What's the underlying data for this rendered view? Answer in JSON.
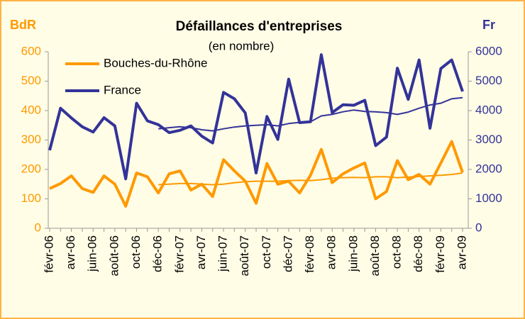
{
  "chart_data": {
    "type": "line",
    "title": "Défaillances d'entreprises",
    "subtitle": "(en nombre)",
    "y_axis_label": "BdR",
    "y2_axis_label": "Fr",
    "categories": [
      "févr-06",
      null,
      "avr-06",
      null,
      "juin-06",
      null,
      "août-06",
      null,
      "oct-06",
      null,
      "déc-06",
      null,
      "févr-07",
      null,
      "avr-07",
      null,
      "juin-07",
      null,
      "août-07",
      null,
      "oct-07",
      null,
      "déc-07",
      null,
      "févr-08",
      null,
      "avr-08",
      null,
      "juin-08",
      null,
      "août-08",
      null,
      "oct-08",
      null,
      "déc-08",
      null,
      "févr-09",
      null,
      "avr-09"
    ],
    "series": [
      {
        "name": "Bouches-du-Rhône",
        "color": "#ff9900",
        "values": [
          135,
          152,
          178,
          135,
          122,
          178,
          150,
          75,
          188,
          175,
          120,
          185,
          195,
          130,
          150,
          108,
          233,
          195,
          160,
          85,
          220,
          150,
          160,
          120,
          180,
          268,
          155,
          185,
          205,
          222,
          100,
          125,
          230,
          165,
          183,
          150,
          222,
          295,
          190
        ]
      },
      {
        "name": "France",
        "color": "#333399",
        "axis": "y2",
        "values": [
          2650,
          4080,
          3750,
          3450,
          3270,
          3760,
          3480,
          1680,
          4250,
          3650,
          3520,
          3250,
          3330,
          3480,
          3130,
          2900,
          4620,
          4400,
          3920,
          1880,
          3800,
          3020,
          5070,
          3590,
          3620,
          5900,
          3930,
          4200,
          4180,
          4350,
          2810,
          3100,
          5440,
          4380,
          5720,
          3400,
          5430,
          5720,
          4650
        ]
      },
      {
        "color": "#ff9900",
        "values": [
          null,
          null,
          null,
          null,
          null,
          null,
          null,
          null,
          null,
          null,
          148,
          150,
          152,
          152,
          150,
          148,
          150,
          155,
          158,
          160,
          160,
          160,
          162,
          163,
          162,
          165,
          170,
          172,
          173,
          172,
          175,
          175,
          172,
          174,
          176,
          178,
          180,
          183,
          188
        ]
      },
      {
        "color": "#333399",
        "axis": "y2",
        "values": [
          null,
          null,
          null,
          null,
          null,
          null,
          null,
          null,
          null,
          null,
          3380,
          3420,
          3450,
          3420,
          3350,
          3310,
          3380,
          3440,
          3480,
          3500,
          3520,
          3480,
          3560,
          3600,
          3620,
          3820,
          3870,
          3960,
          4020,
          3970,
          3960,
          3930,
          3870,
          3950,
          4080,
          4190,
          4250,
          4400,
          4440
        ]
      }
    ],
    "ylim": [
      0,
      600
    ],
    "yticks": [
      0,
      100,
      200,
      300,
      400,
      500,
      600
    ],
    "y2lim": [
      0,
      6000
    ],
    "y2ticks": [
      0,
      1000,
      2000,
      3000,
      4000,
      5000,
      6000
    ],
    "legend": "top-left"
  }
}
